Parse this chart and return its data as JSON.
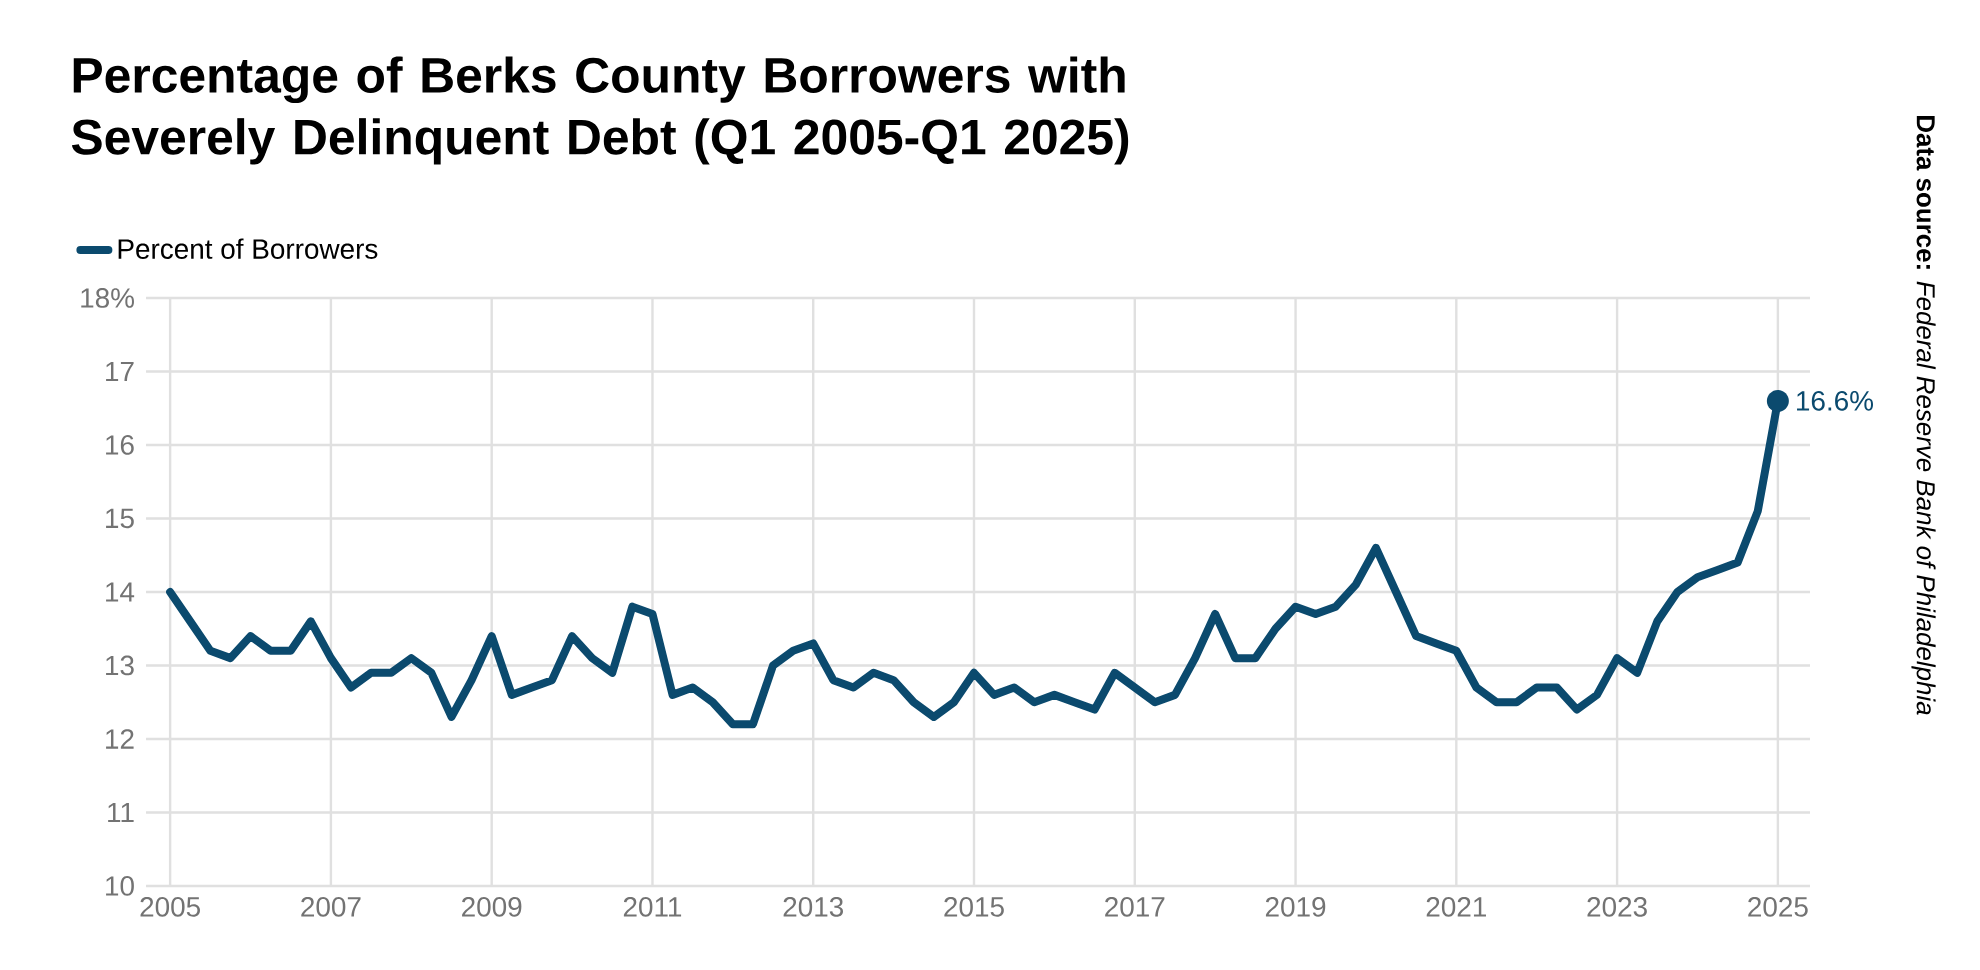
{
  "chart_data": {
    "type": "line",
    "title": "Percentage of Berks County Borrowers with Severely Delinquent Debt (Q1 2005-Q1 2025)",
    "x": [
      2005,
      2005.25,
      2005.5,
      2005.75,
      2006,
      2006.25,
      2006.5,
      2006.75,
      2007,
      2007.25,
      2007.5,
      2007.75,
      2008,
      2008.25,
      2008.5,
      2008.75,
      2009,
      2009.25,
      2009.5,
      2009.75,
      2010,
      2010.25,
      2010.5,
      2010.75,
      2011,
      2011.25,
      2011.5,
      2011.75,
      2012,
      2012.25,
      2012.5,
      2012.75,
      2013,
      2013.25,
      2013.5,
      2013.75,
      2014,
      2014.25,
      2014.5,
      2014.75,
      2015,
      2015.25,
      2015.5,
      2015.75,
      2016,
      2016.25,
      2016.5,
      2016.75,
      2017,
      2017.25,
      2017.5,
      2017.75,
      2018,
      2018.25,
      2018.5,
      2018.75,
      2019,
      2019.25,
      2019.5,
      2019.75,
      2020,
      2020.25,
      2020.5,
      2020.75,
      2021,
      2021.25,
      2021.5,
      2021.75,
      2022,
      2022.25,
      2022.5,
      2022.75,
      2023,
      2023.25,
      2023.5,
      2023.75,
      2024,
      2024.25,
      2024.5,
      2024.75,
      2025
    ],
    "series": [
      {
        "name": "Percent of Borrowers",
        "color": "#0b4a6e",
        "values": [
          14.0,
          13.6,
          13.2,
          13.1,
          13.4,
          13.2,
          13.2,
          13.6,
          13.1,
          12.7,
          12.9,
          12.9,
          13.1,
          12.9,
          12.3,
          12.8,
          13.4,
          12.6,
          12.7,
          12.8,
          13.4,
          13.1,
          12.9,
          13.8,
          13.7,
          12.6,
          12.7,
          12.5,
          12.2,
          12.2,
          13.0,
          13.2,
          13.3,
          12.8,
          12.7,
          12.9,
          12.8,
          12.5,
          12.3,
          12.5,
          12.9,
          12.6,
          12.7,
          12.5,
          12.6,
          12.5,
          12.4,
          12.9,
          12.7,
          12.5,
          12.6,
          13.1,
          13.7,
          13.1,
          13.1,
          13.5,
          13.8,
          13.7,
          13.8,
          14.1,
          14.6,
          14.0,
          13.4,
          13.3,
          13.2,
          12.7,
          12.5,
          12.5,
          12.7,
          12.7,
          12.4,
          12.6,
          13.1,
          12.9,
          13.6,
          14.0,
          14.2,
          14.3,
          14.4,
          15.1,
          16.6
        ],
        "value_labels": [
          null,
          null,
          null,
          null,
          null,
          null,
          null,
          null,
          null,
          null,
          null,
          null,
          null,
          null,
          null,
          null,
          null,
          null,
          null,
          null,
          null,
          null,
          null,
          null,
          null,
          null,
          null,
          null,
          null,
          null,
          null,
          null,
          null,
          null,
          null,
          null,
          null,
          null,
          null,
          null,
          null,
          null,
          null,
          null,
          null,
          null,
          null,
          null,
          null,
          null,
          null,
          null,
          null,
          null,
          null,
          null,
          null,
          null,
          null,
          null,
          null,
          null,
          null,
          null,
          null,
          null,
          null,
          null,
          null,
          null,
          null,
          null,
          null,
          null,
          null,
          null,
          null,
          null,
          null,
          null,
          "16.6%"
        ]
      }
    ],
    "xlim": [
      2004.7,
      2025.4
    ],
    "xticks": [
      2005,
      2007,
      2009,
      2011,
      2013,
      2015,
      2017,
      2019,
      2021,
      2023,
      2025
    ],
    "ylim": [
      10,
      18
    ],
    "yticks": [
      10,
      11,
      12,
      13,
      14,
      15,
      16,
      17,
      {
        "value": 18,
        "label": "18%"
      }
    ],
    "grid": true,
    "legend": "top left",
    "line_style": "solid",
    "annotations": [
      "**Data source:** *Federal Reserve Bank of Philadelphia*"
    ]
  }
}
